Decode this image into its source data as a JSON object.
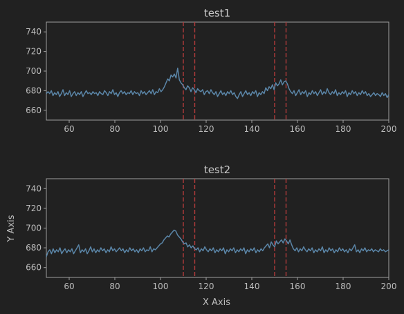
{
  "colors": {
    "background": "#212121",
    "axes_frame": "#a0a0a0",
    "line": "#5b86a8",
    "vline": "#b23b3b",
    "text": "#bdbdbd"
  },
  "chart_data": [
    {
      "type": "line",
      "title": "test1",
      "xlabel": "",
      "ylabel": "",
      "xlim": [
        50,
        200
      ],
      "ylim": [
        650,
        750
      ],
      "xticks": [
        60,
        80,
        100,
        120,
        140,
        160,
        180,
        200
      ],
      "yticks": [
        660,
        680,
        700,
        720,
        740
      ],
      "grid": false,
      "vlines": [
        110,
        115,
        150,
        155
      ],
      "series": [
        {
          "x_start": 50,
          "x_end": 200,
          "values": [
            677,
            679,
            677,
            680,
            675,
            678,
            676,
            679,
            674,
            677,
            681,
            675,
            678,
            676,
            680,
            674,
            677,
            679,
            675,
            678,
            676,
            679,
            674,
            677,
            680,
            677,
            678,
            676,
            679,
            677,
            678,
            675,
            679,
            677,
            676,
            680,
            678,
            675,
            679,
            677,
            681,
            676,
            678,
            674,
            678,
            680,
            677,
            679,
            676,
            678,
            677,
            680,
            676,
            679,
            677,
            678,
            675,
            680,
            677,
            679,
            676,
            678,
            680,
            677,
            681,
            676,
            679,
            678,
            682,
            679,
            681,
            684,
            688,
            692,
            690,
            696,
            694,
            697,
            693,
            703,
            691,
            688,
            686,
            683,
            681,
            685,
            683,
            679,
            683,
            681,
            678,
            682,
            680,
            679,
            681,
            676,
            679,
            680,
            677,
            681,
            678,
            676,
            679,
            674,
            677,
            680,
            676,
            678,
            675,
            679,
            677,
            680,
            676,
            678,
            674,
            672,
            676,
            679,
            674,
            677,
            680,
            676,
            678,
            675,
            679,
            677,
            680,
            674,
            678,
            676,
            679,
            677,
            683,
            680,
            684,
            682,
            686,
            681,
            688,
            685,
            687,
            691,
            686,
            689,
            690,
            687,
            682,
            679,
            677,
            680,
            675,
            678,
            681,
            676,
            679,
            677,
            680,
            674,
            678,
            676,
            680,
            677,
            679,
            675,
            678,
            681,
            676,
            679,
            677,
            682,
            678,
            676,
            679,
            677,
            681,
            675,
            678,
            676,
            679,
            677,
            680,
            674,
            678,
            676,
            680,
            677,
            679,
            675,
            678,
            676,
            680,
            677,
            679,
            675,
            677,
            674,
            676,
            678,
            675,
            677,
            676,
            674,
            678,
            675,
            677,
            673,
            676
          ]
        }
      ]
    },
    {
      "type": "line",
      "title": "test2",
      "xlabel": "X Axis",
      "ylabel": "Y Axis",
      "xlim": [
        50,
        200
      ],
      "ylim": [
        650,
        750
      ],
      "xticks": [
        60,
        80,
        100,
        120,
        140,
        160,
        180,
        200
      ],
      "yticks": [
        660,
        680,
        700,
        720,
        740
      ],
      "grid": false,
      "vlines": [
        110,
        115,
        150,
        155
      ],
      "series": [
        {
          "x_start": 50,
          "x_end": 200,
          "values": [
            671,
            676,
            678,
            674,
            679,
            675,
            678,
            676,
            680,
            674,
            677,
            679,
            675,
            678,
            676,
            679,
            674,
            677,
            680,
            683,
            675,
            678,
            676,
            679,
            674,
            677,
            681,
            676,
            679,
            675,
            678,
            676,
            680,
            677,
            679,
            675,
            678,
            676,
            681,
            677,
            679,
            676,
            678,
            680,
            677,
            679,
            675,
            678,
            676,
            680,
            677,
            679,
            676,
            678,
            675,
            679,
            677,
            680,
            676,
            678,
            677,
            681,
            676,
            679,
            678,
            680,
            682,
            684,
            685,
            688,
            690,
            692,
            691,
            694,
            696,
            698,
            697,
            693,
            691,
            689,
            686,
            684,
            685,
            681,
            683,
            680,
            682,
            679,
            678,
            680,
            676,
            679,
            677,
            681,
            678,
            676,
            679,
            677,
            680,
            675,
            678,
            676,
            679,
            677,
            680,
            674,
            678,
            676,
            679,
            677,
            680,
            675,
            678,
            676,
            679,
            677,
            680,
            674,
            678,
            676,
            679,
            677,
            680,
            675,
            678,
            676,
            679,
            677,
            680,
            682,
            684,
            680,
            686,
            683,
            681,
            687,
            684,
            686,
            688,
            685,
            689,
            687,
            684,
            688,
            683,
            679,
            677,
            680,
            676,
            679,
            677,
            681,
            678,
            676,
            679,
            677,
            680,
            675,
            678,
            676,
            679,
            677,
            681,
            675,
            678,
            676,
            680,
            677,
            679,
            675,
            678,
            676,
            680,
            677,
            679,
            676,
            678,
            675,
            679,
            677,
            680,
            683,
            676,
            678,
            675,
            679,
            677,
            680,
            676,
            678,
            677,
            679,
            676,
            678,
            677,
            676,
            679,
            677,
            678,
            676,
            677,
            678
          ]
        }
      ]
    }
  ]
}
